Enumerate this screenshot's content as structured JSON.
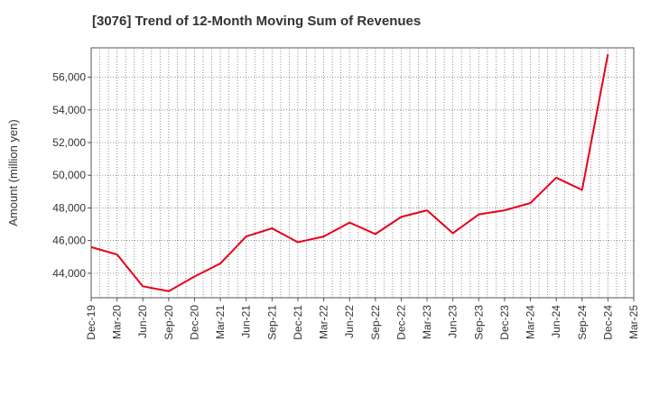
{
  "chart_data": {
    "type": "line",
    "title": "[3076]  Trend of 12-Month Moving Sum of Revenues",
    "xlabel": "",
    "ylabel": "Amount (million yen)",
    "ylim": [
      42500,
      57800
    ],
    "y_ticks": [
      44000,
      46000,
      48000,
      50000,
      52000,
      54000,
      56000
    ],
    "y_tick_labels": [
      "44,000",
      "46,000",
      "48,000",
      "50,000",
      "52,000",
      "54,000",
      "56,000"
    ],
    "x_tick_labels": [
      "Dec-19",
      "Mar-20",
      "Jun-20",
      "Sep-20",
      "Dec-20",
      "Mar-21",
      "Jun-21",
      "Sep-21",
      "Dec-21",
      "Mar-22",
      "Jun-22",
      "Sep-22",
      "Dec-22",
      "Mar-23",
      "Jun-23",
      "Sep-23",
      "Dec-23",
      "Mar-24",
      "Jun-24",
      "Sep-24",
      "Dec-24",
      "Mar-25"
    ],
    "grid": true,
    "line_color": "#e8001c",
    "series": [
      {
        "x": [
          "Dec-19",
          "Mar-20",
          "Jun-20",
          "Sep-20",
          "Dec-20",
          "Mar-21",
          "Jun-21",
          "Sep-21",
          "Dec-21",
          "Mar-22",
          "Jun-22",
          "Sep-22",
          "Dec-22",
          "Mar-23",
          "Jun-23",
          "Sep-23",
          "Dec-23",
          "Mar-24",
          "Jun-24",
          "Sep-24",
          "Dec-24"
        ],
        "values": [
          45600,
          45150,
          43200,
          42900,
          43800,
          44600,
          46250,
          46750,
          45900,
          46250,
          47100,
          46400,
          47450,
          47850,
          46450,
          47600,
          47850,
          48300,
          49850,
          49100,
          57400
        ]
      }
    ]
  }
}
